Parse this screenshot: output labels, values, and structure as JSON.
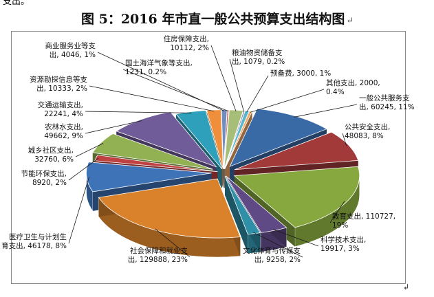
{
  "page": {
    "top_fragment": "支出。",
    "title": "图 5：2016 年市直一般公共预算支出结构图",
    "title_mark": "↵",
    "end_mark": "↲"
  },
  "chart_data": {
    "type": "pie",
    "title": "图 5：2016 年市直一般公共预算支出结构图",
    "style": "3D exploded pie",
    "units": "",
    "categories": [
      "一般公共服务支出",
      "公共安全支出",
      "教育支出",
      "科学技术支出",
      "文化体育与传媒支出",
      "社会保障和就业支出",
      "医疗卫生与计划生育支出",
      "节能环保支出",
      "城乡社区支出",
      "农林水支出",
      "交通运输支出",
      "资源勘探信息等支出",
      "商业服务业等支出",
      "国土海洋气象等支出",
      "住房保障支出",
      "粮油物资储备支出",
      "预备费",
      "其他支出"
    ],
    "values": [
      60245,
      48083,
      110727,
      19917,
      9258,
      129888,
      46178,
      8920,
      32760,
      49662,
      22241,
      10333,
      4046,
      1231,
      10112,
      1079,
      3000,
      2000
    ],
    "percents": [
      "11%",
      "8%",
      "19%",
      "3%",
      "2%",
      "23%",
      "8%",
      "2%",
      "6%",
      "9%",
      "4%",
      "2%",
      "1%",
      "0.2%",
      "2%",
      "0.2%",
      "1%",
      "0.4%"
    ],
    "colors": [
      "#3A6AA6",
      "#A23A3A",
      "#86A83E",
      "#5F4A85",
      "#2E8FA6",
      "#D9822B",
      "#3E73B8",
      "#BF4141",
      "#92B152",
      "#705C99",
      "#2FA0BB",
      "#F08F3B",
      "#6F8DBE",
      "#C46B6A",
      "#A7BE78",
      "#8D80B0",
      "#5BB7CC",
      "#F3A968"
    ],
    "data_labels": [
      [
        "一般公共服务支",
        "出, 60245, 11%"
      ],
      [
        "公共安全支出,",
        "48083, 8%"
      ],
      [
        "教育支出, 110727,",
        "19%"
      ],
      [
        "科学技术支出,",
        "19917, 3%"
      ],
      [
        "文化体育与传媒支",
        "出, 9258, 2%"
      ],
      [
        "社会保障和就业支",
        "出, 129888, 23%"
      ],
      [
        "医疗卫生与计划生",
        "育支出, 46178, 8%"
      ],
      [
        "节能环保支出,",
        "8920, 2%"
      ],
      [
        "城乡社区支出,",
        "32760, 6%"
      ],
      [
        "农林水支出,",
        "49662, 9%"
      ],
      [
        "交通运输支出,",
        "22241, 4%"
      ],
      [
        "资源勘探信息等支",
        "出, 10333, 2%"
      ],
      [
        "商业服务业等支",
        "出, 4046, 1%"
      ],
      [
        "国土海洋气象等支出,",
        "1231, 0.2%"
      ],
      [
        "住房保障支出,",
        "10112, 2%"
      ],
      [
        "粮油物资储备支",
        "出, 1079, 0.2%"
      ],
      [
        "预备费, 3000, 1%"
      ],
      [
        "其他支出, 2000,",
        "0.4%"
      ]
    ]
  }
}
